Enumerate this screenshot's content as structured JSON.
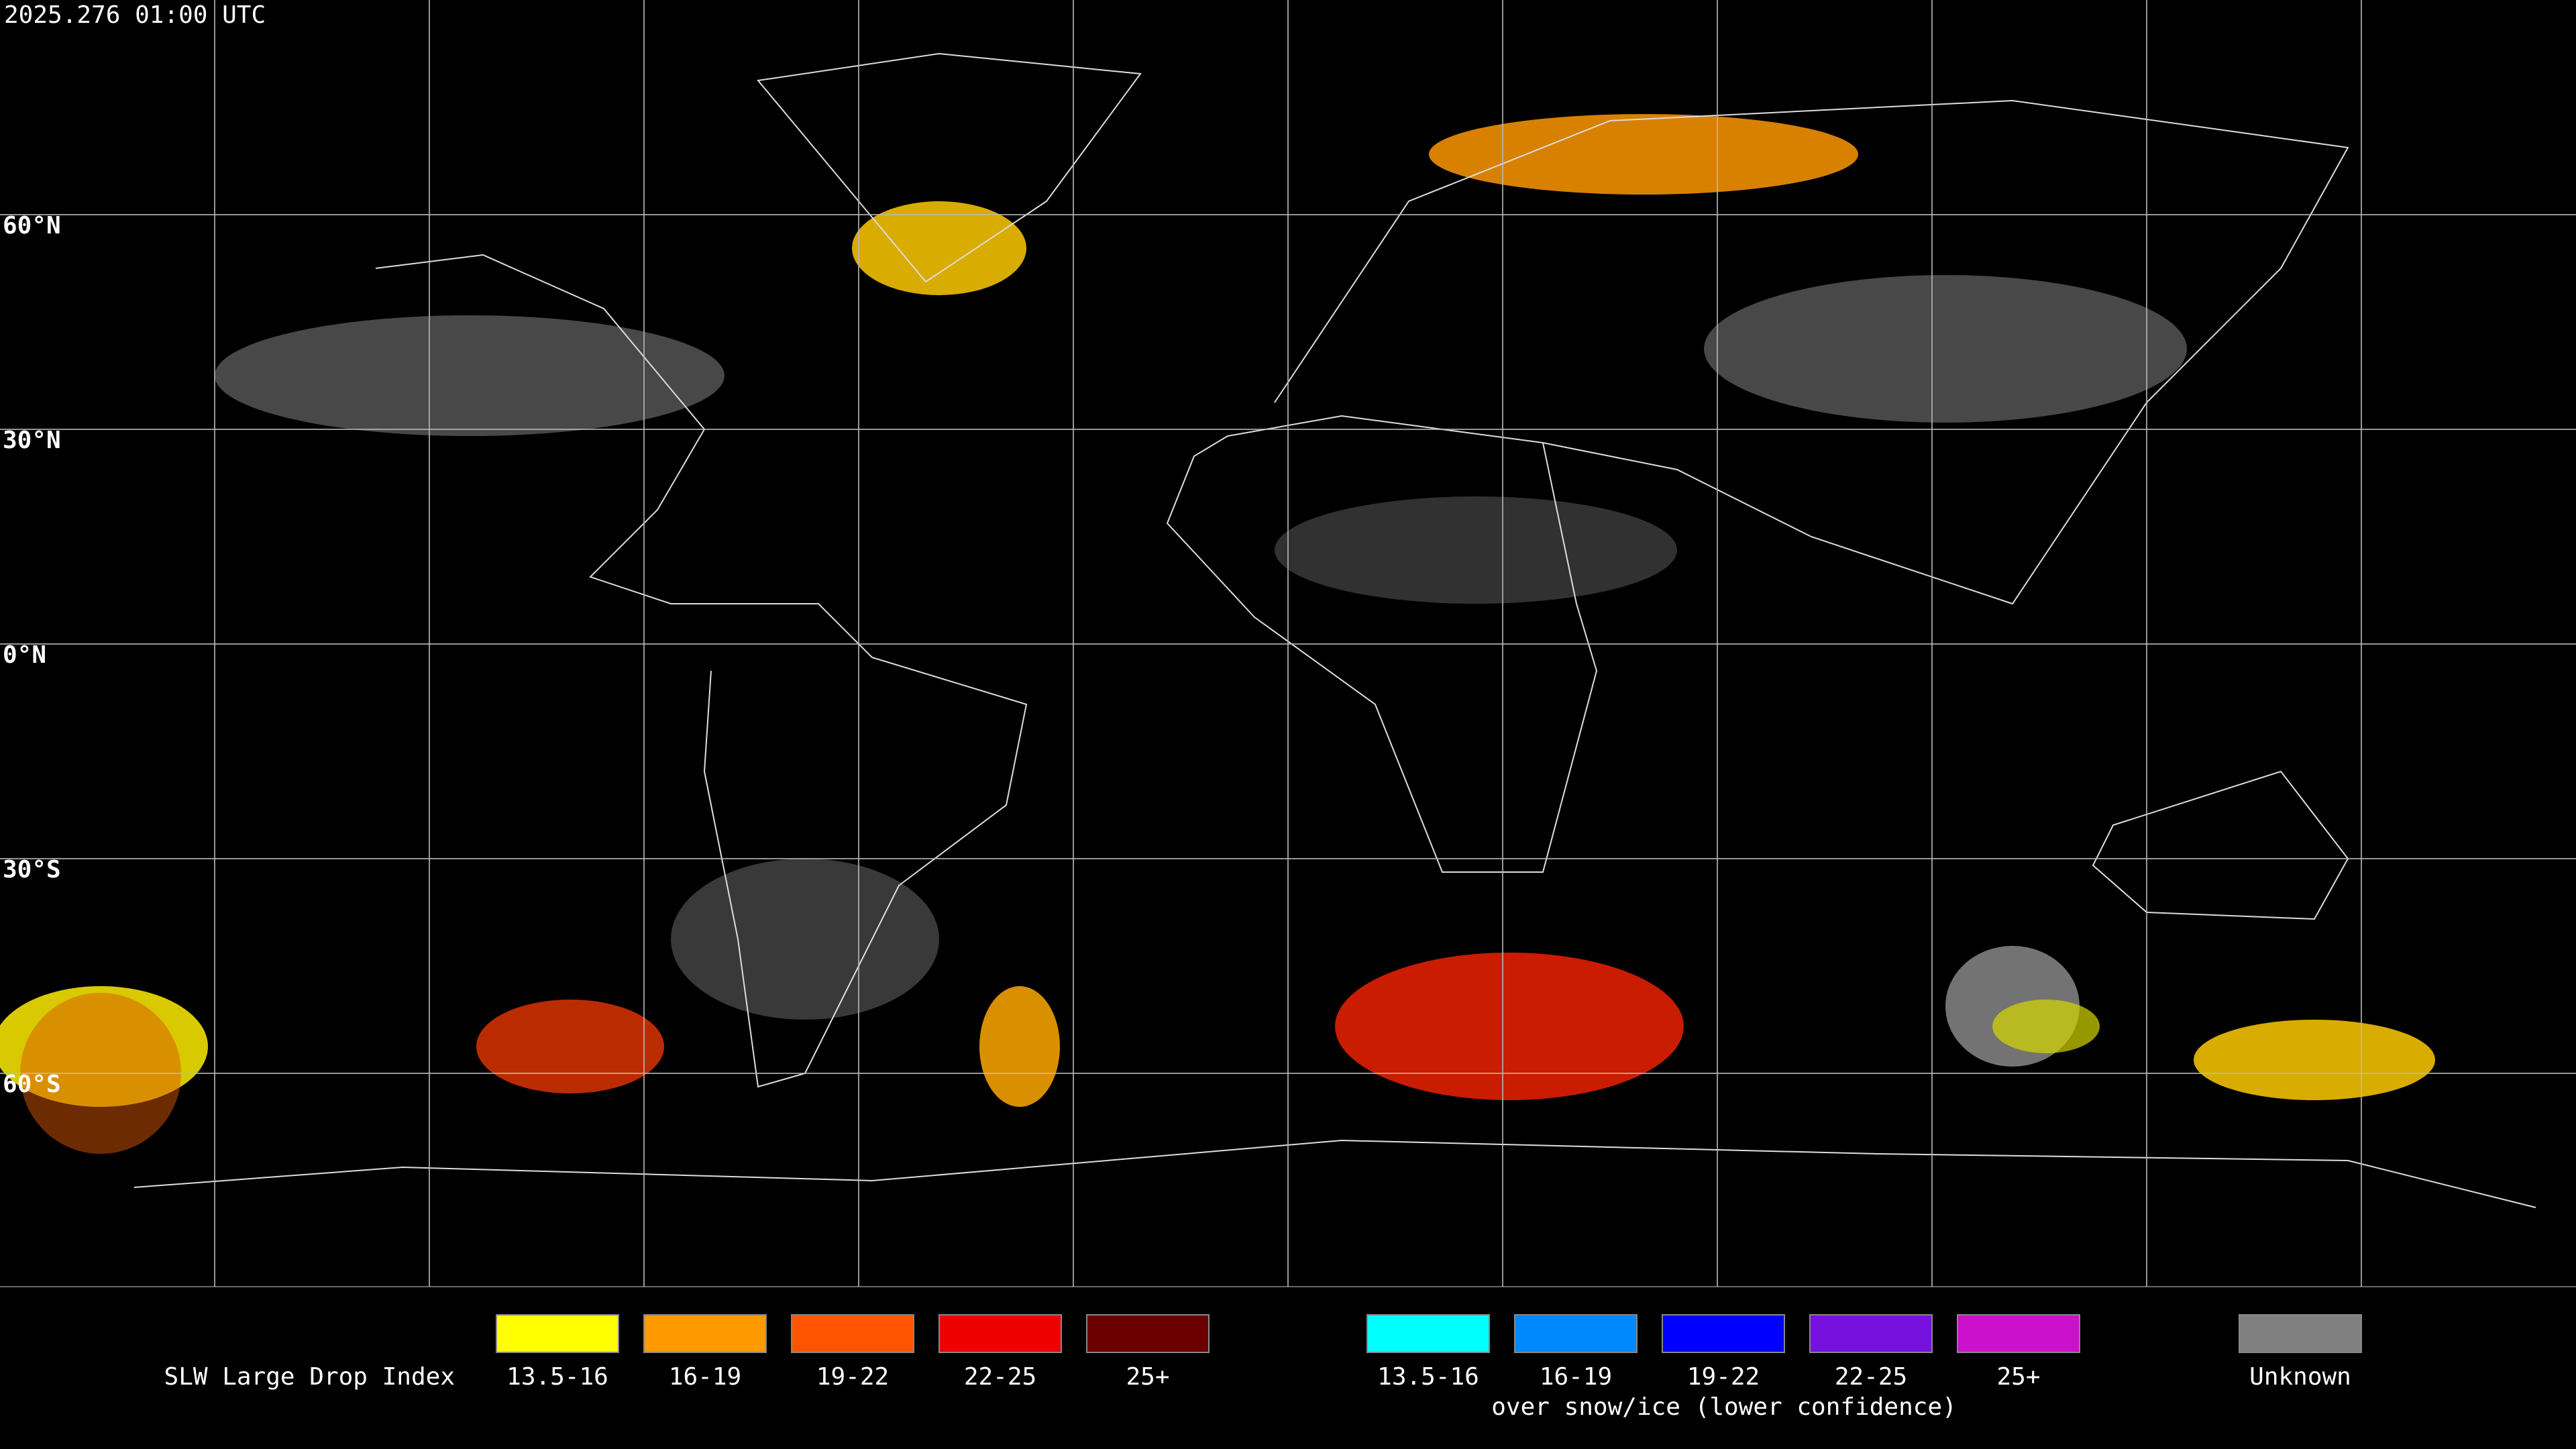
{
  "header": {
    "title": "2025.276 01:00 UTC"
  },
  "map": {
    "lat_labels": [
      "60°N",
      "30°N",
      "0°N",
      "30°S",
      "60°S"
    ],
    "grid_color": "#bbbbbb"
  },
  "legend": {
    "title": "SLW Large Drop Index",
    "items": [
      {
        "label": "13.5-16",
        "color": "#ffff00"
      },
      {
        "label": "16-19",
        "color": "#ff9900"
      },
      {
        "label": "19-22",
        "color": "#ff5500"
      },
      {
        "label": "22-25",
        "color": "#ee0000"
      },
      {
        "label": "25+",
        "color": "#6b0000"
      }
    ],
    "snow_items": [
      {
        "label": "13.5-16",
        "color": "#00ffff"
      },
      {
        "label": "16-19",
        "color": "#0088ff"
      },
      {
        "label": "19-22",
        "color": "#0000ff"
      },
      {
        "label": "22-25",
        "color": "#7711dd"
      },
      {
        "label": "25+",
        "color": "#cc11cc"
      }
    ],
    "snow_caption": "over snow/ice (lower confidence)",
    "unknown": {
      "label": "Unknown",
      "color": "#808080"
    }
  }
}
